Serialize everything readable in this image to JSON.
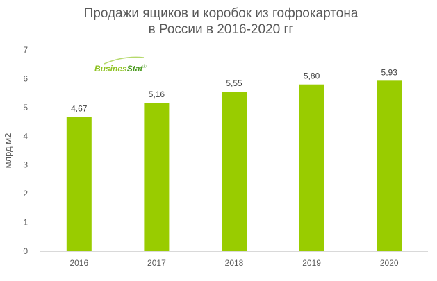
{
  "chart_data": {
    "type": "bar",
    "title_lines": [
      "Продажи ящиков и коробок из гофрокартона",
      "в России в 2016-2020 гг"
    ],
    "ylabel": "млрд м2",
    "xlabel": "",
    "categories": [
      "2016",
      "2017",
      "2018",
      "2019",
      "2020"
    ],
    "values": [
      4.67,
      5.16,
      5.55,
      5.8,
      5.93
    ],
    "data_labels": [
      "4,67",
      "5,16",
      "5,55",
      "5,80",
      "5,93"
    ],
    "ylim": [
      0,
      7
    ],
    "yticks": [
      "0",
      "1",
      "2",
      "3",
      "4",
      "5",
      "6",
      "7"
    ],
    "grid": false,
    "bar_color": "#99cc00"
  },
  "logo": {
    "text_part1": "Busines",
    "text_part2": "Stat",
    "mark": "®",
    "color_part1": "#8dc21f",
    "color_part2": "#4a9a1f"
  }
}
